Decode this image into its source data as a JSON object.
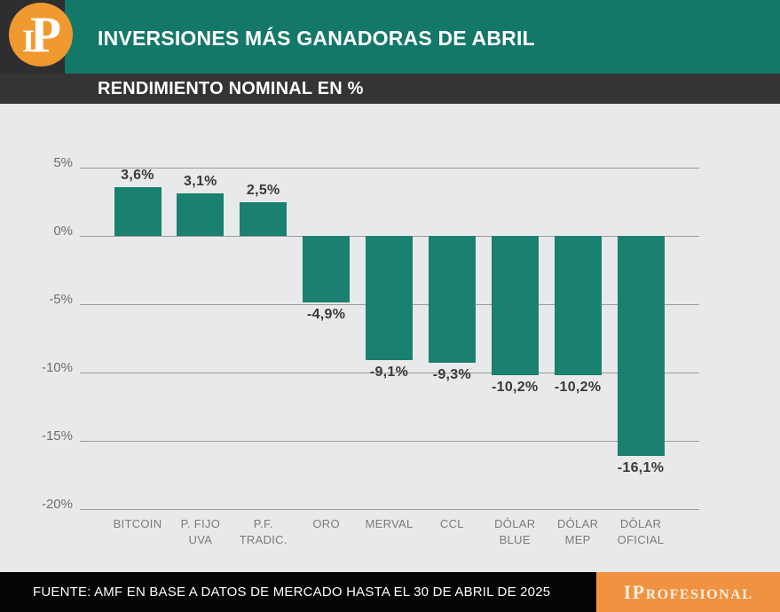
{
  "header": {
    "logo": {
      "i": "I",
      "p": "P"
    },
    "title": "INVERSIONES MÁS GANADORAS DE ABRIL",
    "subtitle": "RENDIMIENTO NOMINAL EN %"
  },
  "chart_data": {
    "type": "bar",
    "title": "INVERSIONES MÁS GANADORAS DE ABRIL",
    "subtitle": "RENDIMIENTO NOMINAL EN %",
    "categories": [
      "BITCOIN",
      "P. FIJO UVA",
      "P.F. TRADIC.",
      "ORO",
      "MERVAL",
      "CCL",
      "DÓLAR BLUE",
      "DÓLAR MEP",
      "DÓLAR OFICIAL"
    ],
    "category_lines": [
      [
        "BITCOIN"
      ],
      [
        "P. FIJO",
        "UVA"
      ],
      [
        "P.F.",
        "TRADIC."
      ],
      [
        "ORO"
      ],
      [
        "MERVAL"
      ],
      [
        "CCL"
      ],
      [
        "DÓLAR",
        "BLUE"
      ],
      [
        "DÓLAR",
        "MEP"
      ],
      [
        "DÓLAR",
        "OFICIAL"
      ]
    ],
    "values": [
      3.6,
      3.1,
      2.5,
      -4.9,
      -9.1,
      -9.3,
      -10.2,
      -10.2,
      -16.1
    ],
    "value_labels": [
      "3,6%",
      "3,1%",
      "2,5%",
      "-4,9%",
      "-9,1%",
      "-9,3%",
      "-10,2%",
      "-10,2%",
      "-16,1%"
    ],
    "ylabel": "RENDIMIENTO NOMINAL EN %",
    "xlabel": "",
    "ylim": [
      -20,
      5
    ],
    "yticks": [
      5,
      0,
      -5,
      -10,
      -15,
      -20
    ],
    "ytick_labels": [
      "5%",
      "0%",
      "-5%",
      "-10%",
      "-15%",
      "-20%"
    ],
    "grid": true,
    "legend": false,
    "bar_color": "#1A8070"
  },
  "footer": {
    "source": "FUENTE: AMF EN BASE A DATOS DE MERCADO HASTA EL 30 DE ABRIL DE 2025",
    "brand": "IPROFESIONAL",
    "brand_big": "IP",
    "brand_small": "ROFESIONAL"
  },
  "colors": {
    "header_teal": "#147868",
    "subtitle_dark": "#343436",
    "logo_block_dark": "#2e2e30",
    "logo_orange": "#F0992F",
    "brand_orange": "#F09240",
    "bar_teal": "#1A8070",
    "background_gray": "#e8e9ea",
    "footer_black": "#040404"
  }
}
